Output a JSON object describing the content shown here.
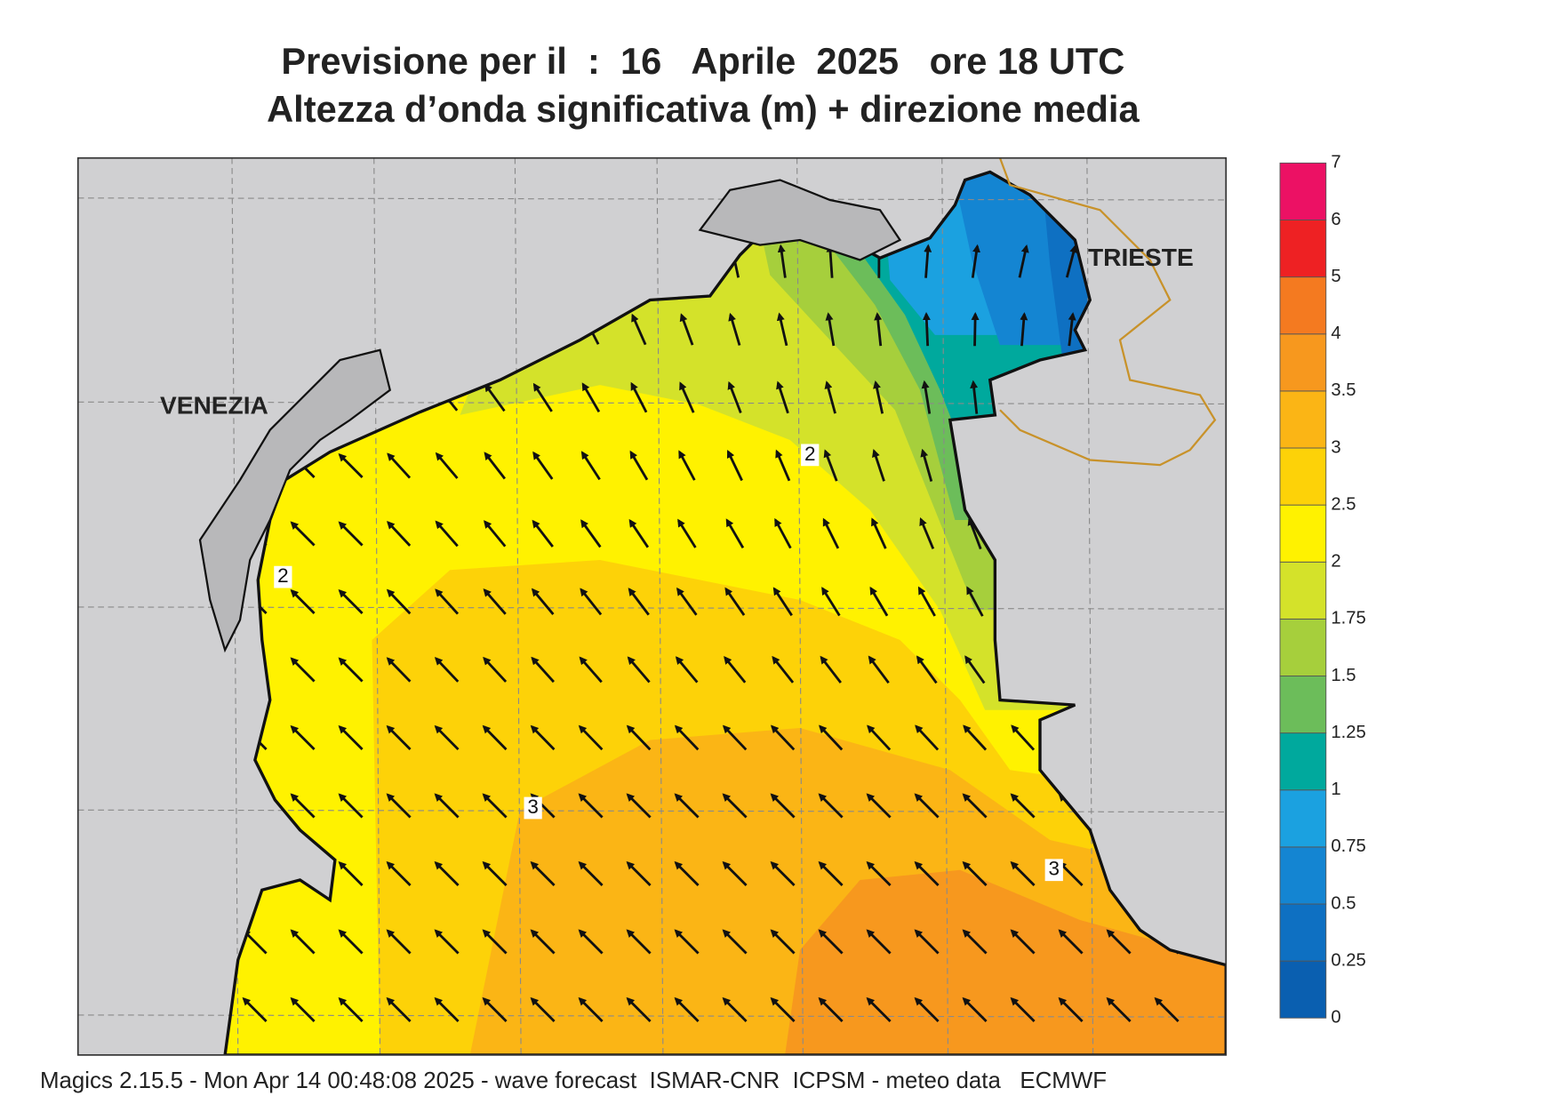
{
  "header": {
    "title": "Previsione per il  :  16   Aprile  2025   ore 18 UTC",
    "subtitle": "Altezza d’onda significativa (m) + direzione media"
  },
  "map": {
    "places": [
      "VENEZIA",
      "TRIESTE"
    ],
    "contour_labels": [
      "2",
      "2",
      "3",
      "3"
    ]
  },
  "legend": {
    "levels": [
      0,
      0.25,
      0.5,
      0.75,
      1,
      1.25,
      1.5,
      1.75,
      2,
      2.5,
      3,
      3.5,
      4,
      5,
      6,
      7
    ],
    "colors": [
      "#0a5fb0",
      "#0e70c2",
      "#1485d2",
      "#1ba1e0",
      "#00a99d",
      "#6cbd5a",
      "#a6cf3c",
      "#d4e22a",
      "#fff200",
      "#fdd208",
      "#fbb515",
      "#f7981e",
      "#f47a20",
      "#ee2123",
      "#ec1164"
    ]
  },
  "footer": "Magics 2.15.5 - Mon Apr 14 00:48:08 2025 - wave forecast  ISMAR-CNR  ICPSM - meteo data   ECMWF"
}
